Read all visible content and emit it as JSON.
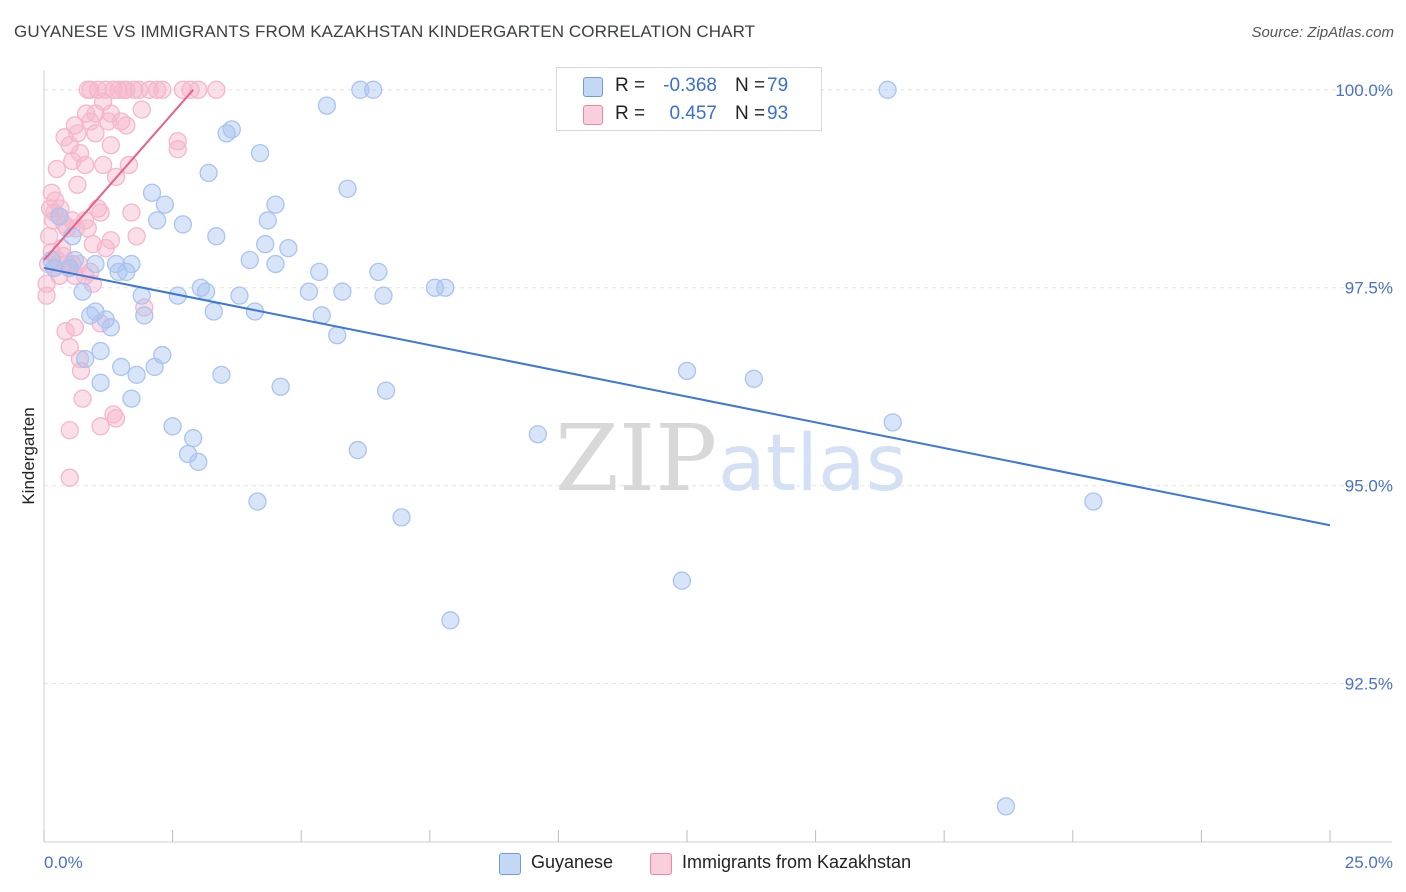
{
  "header": {
    "title": "GUYANESE VS IMMIGRANTS FROM KAZAKHSTAN KINDERGARTEN CORRELATION CHART",
    "source": "Source: ZipAtlas.com"
  },
  "watermark": {
    "zip": "ZIP",
    "atlas": "atlas"
  },
  "legend_top": {
    "rows": [
      {
        "r_label": "R =",
        "r_value": "-0.368",
        "n_label": "N =",
        "n_value": "79",
        "color": "#a9c4f0"
      },
      {
        "r_label": "R =",
        "r_value": "0.457",
        "n_label": "N =",
        "n_value": "93",
        "color": "#f5b6cb"
      }
    ]
  },
  "legend_bottom": {
    "items": [
      {
        "label": "Guyanese",
        "color": "#a9c4f0"
      },
      {
        "label": "Immigrants from Kazakhstan",
        "color": "#f5b6cb"
      }
    ]
  },
  "chart_data": {
    "type": "scatter",
    "title": "GUYANESE VS IMMIGRANTS FROM KAZAKHSTAN KINDERGARTEN CORRELATION CHART",
    "xlabel": "",
    "ylabel": "Kindergarten",
    "xlim": [
      0,
      25
    ],
    "ylim": [
      90.5,
      100.25
    ],
    "x_tick_labels": [
      "0.0%",
      "25.0%"
    ],
    "y_ticks": [
      92.5,
      95.0,
      97.5,
      100.0
    ],
    "y_tick_labels": [
      "92.5%",
      "95.0%",
      "97.5%",
      "100.0%"
    ],
    "grid": true,
    "legend": "bottom-center",
    "series": [
      {
        "name": "Guyanese",
        "color": "#3a78d4",
        "fill": "#a9c4f0",
        "r": -0.368,
        "n": 79,
        "trend": {
          "x": [
            0.0,
            25.0
          ],
          "y": [
            97.75,
            94.5
          ]
        },
        "points": [
          [
            0.15,
            97.85
          ],
          [
            0.2,
            97.75
          ],
          [
            0.3,
            98.4
          ],
          [
            0.5,
            97.75
          ],
          [
            0.6,
            97.85
          ],
          [
            0.75,
            97.45
          ],
          [
            0.8,
            96.6
          ],
          [
            0.9,
            97.15
          ],
          [
            1.0,
            97.8
          ],
          [
            1.0,
            97.2
          ],
          [
            1.1,
            96.3
          ],
          [
            1.1,
            96.7
          ],
          [
            1.2,
            97.1
          ],
          [
            1.3,
            97.0
          ],
          [
            1.4,
            97.8
          ],
          [
            1.5,
            96.5
          ],
          [
            1.6,
            97.7
          ],
          [
            1.7,
            97.8
          ],
          [
            1.7,
            96.1
          ],
          [
            1.8,
            96.4
          ],
          [
            1.9,
            97.4
          ],
          [
            1.95,
            97.15
          ],
          [
            2.1,
            98.7
          ],
          [
            2.15,
            96.5
          ],
          [
            2.2,
            98.35
          ],
          [
            2.3,
            96.65
          ],
          [
            2.35,
            98.55
          ],
          [
            2.5,
            95.75
          ],
          [
            2.6,
            97.4
          ],
          [
            2.7,
            98.3
          ],
          [
            2.8,
            95.4
          ],
          [
            2.9,
            95.6
          ],
          [
            3.0,
            95.3
          ],
          [
            3.05,
            97.5
          ],
          [
            3.15,
            97.45
          ],
          [
            3.2,
            98.95
          ],
          [
            3.3,
            97.2
          ],
          [
            3.35,
            98.15
          ],
          [
            3.45,
            96.4
          ],
          [
            3.55,
            99.45
          ],
          [
            3.65,
            99.5
          ],
          [
            3.8,
            97.4
          ],
          [
            4.0,
            97.85
          ],
          [
            4.1,
            97.2
          ],
          [
            4.15,
            94.8
          ],
          [
            4.2,
            99.2
          ],
          [
            4.3,
            98.05
          ],
          [
            4.35,
            98.35
          ],
          [
            4.5,
            97.8
          ],
          [
            4.5,
            98.55
          ],
          [
            4.6,
            96.25
          ],
          [
            4.75,
            98.0
          ],
          [
            5.15,
            97.45
          ],
          [
            5.35,
            97.7
          ],
          [
            5.4,
            97.15
          ],
          [
            5.5,
            99.8
          ],
          [
            5.7,
            96.9
          ],
          [
            5.8,
            97.45
          ],
          [
            5.9,
            98.75
          ],
          [
            6.1,
            95.45
          ],
          [
            6.15,
            100.0
          ],
          [
            6.4,
            100.0
          ],
          [
            6.5,
            97.7
          ],
          [
            6.6,
            97.4
          ],
          [
            6.65,
            96.2
          ],
          [
            6.95,
            94.6
          ],
          [
            7.6,
            97.5
          ],
          [
            7.8,
            97.5
          ],
          [
            7.9,
            93.3
          ],
          [
            9.6,
            95.65
          ],
          [
            12.4,
            93.8
          ],
          [
            12.5,
            96.45
          ],
          [
            13.8,
            96.35
          ],
          [
            16.4,
            100.0
          ],
          [
            16.5,
            95.8
          ],
          [
            18.7,
            90.95
          ],
          [
            20.4,
            94.8
          ],
          [
            1.45,
            97.7
          ],
          [
            0.55,
            98.15
          ]
        ]
      },
      {
        "name": "Immigrants from Kazakhstan",
        "color": "#e8608c",
        "fill": "#f5b6cb",
        "r": 0.457,
        "n": 93,
        "trend": {
          "x": [
            0.0,
            2.9
          ],
          "y": [
            97.85,
            100.0
          ]
        },
        "points": [
          [
            0.05,
            97.4
          ],
          [
            0.05,
            97.55
          ],
          [
            0.08,
            97.8
          ],
          [
            0.1,
            98.15
          ],
          [
            0.12,
            98.5
          ],
          [
            0.15,
            98.7
          ],
          [
            0.15,
            97.95
          ],
          [
            0.18,
            98.35
          ],
          [
            0.2,
            98.45
          ],
          [
            0.2,
            97.75
          ],
          [
            0.22,
            98.6
          ],
          [
            0.25,
            99.0
          ],
          [
            0.25,
            97.85
          ],
          [
            0.3,
            98.4
          ],
          [
            0.3,
            97.65
          ],
          [
            0.32,
            98.5
          ],
          [
            0.35,
            98.0
          ],
          [
            0.38,
            97.9
          ],
          [
            0.4,
            99.4
          ],
          [
            0.4,
            98.3
          ],
          [
            0.42,
            96.95
          ],
          [
            0.45,
            98.25
          ],
          [
            0.45,
            97.8
          ],
          [
            0.48,
            97.75
          ],
          [
            0.5,
            96.75
          ],
          [
            0.5,
            99.3
          ],
          [
            0.5,
            95.7
          ],
          [
            0.5,
            95.1
          ],
          [
            0.55,
            99.1
          ],
          [
            0.55,
            98.35
          ],
          [
            0.55,
            97.8
          ],
          [
            0.6,
            97.65
          ],
          [
            0.6,
            97.0
          ],
          [
            0.6,
            99.55
          ],
          [
            0.62,
            98.25
          ],
          [
            0.65,
            98.8
          ],
          [
            0.65,
            99.45
          ],
          [
            0.68,
            97.8
          ],
          [
            0.7,
            99.2
          ],
          [
            0.7,
            96.6
          ],
          [
            0.72,
            96.45
          ],
          [
            0.75,
            96.1
          ],
          [
            0.8,
            99.05
          ],
          [
            0.8,
            98.35
          ],
          [
            0.8,
            97.65
          ],
          [
            0.82,
            99.7
          ],
          [
            0.85,
            98.25
          ],
          [
            0.85,
            100.0
          ],
          [
            0.9,
            99.6
          ],
          [
            0.9,
            100.0
          ],
          [
            0.9,
            97.7
          ],
          [
            0.95,
            97.55
          ],
          [
            0.95,
            98.05
          ],
          [
            1.0,
            99.45
          ],
          [
            1.0,
            99.7
          ],
          [
            1.05,
            100.0
          ],
          [
            1.05,
            98.5
          ],
          [
            1.1,
            98.45
          ],
          [
            1.1,
            95.75
          ],
          [
            1.1,
            97.05
          ],
          [
            1.15,
            99.85
          ],
          [
            1.15,
            99.05
          ],
          [
            1.2,
            100.0
          ],
          [
            1.2,
            98.0
          ],
          [
            1.25,
            99.6
          ],
          [
            1.3,
            99.7
          ],
          [
            1.3,
            99.3
          ],
          [
            1.3,
            98.1
          ],
          [
            1.35,
            100.0
          ],
          [
            1.35,
            95.9
          ],
          [
            1.4,
            95.85
          ],
          [
            1.4,
            98.9
          ],
          [
            1.45,
            100.0
          ],
          [
            1.5,
            99.6
          ],
          [
            1.55,
            100.0
          ],
          [
            1.6,
            99.55
          ],
          [
            1.6,
            100.0
          ],
          [
            1.65,
            99.05
          ],
          [
            1.7,
            98.45
          ],
          [
            1.75,
            100.0
          ],
          [
            1.8,
            98.15
          ],
          [
            1.85,
            100.0
          ],
          [
            1.9,
            99.75
          ],
          [
            1.95,
            97.25
          ],
          [
            2.05,
            100.0
          ],
          [
            2.2,
            100.0
          ],
          [
            2.3,
            100.0
          ],
          [
            2.6,
            99.35
          ],
          [
            2.6,
            99.25
          ],
          [
            2.7,
            100.0
          ],
          [
            2.85,
            100.0
          ],
          [
            3.0,
            100.0
          ],
          [
            3.35,
            100.0
          ]
        ]
      }
    ]
  }
}
